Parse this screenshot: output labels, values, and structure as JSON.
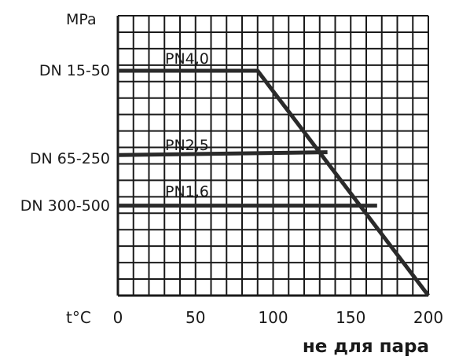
{
  "chart_data": {
    "type": "line",
    "y_unit": "MPa",
    "x_unit": "t°C",
    "x_ticks": [
      "0",
      "50",
      "100",
      "150",
      "200"
    ],
    "xlim": [
      0,
      200
    ],
    "grid": true,
    "note": "не для пара",
    "series": [
      {
        "name": "PN4,0",
        "dn": "DN 15-50",
        "points": [
          [
            0,
            4.0
          ],
          [
            90,
            4.0
          ],
          [
            200,
            0
          ]
        ]
      },
      {
        "name": "PN2,5",
        "dn": "DN 65-250",
        "points": [
          [
            0,
            2.5
          ],
          [
            135,
            2.55
          ]
        ]
      },
      {
        "name": "PN1,6",
        "dn": "DN 300-500",
        "points": [
          [
            0,
            1.6
          ],
          [
            167,
            1.6
          ]
        ]
      }
    ]
  }
}
